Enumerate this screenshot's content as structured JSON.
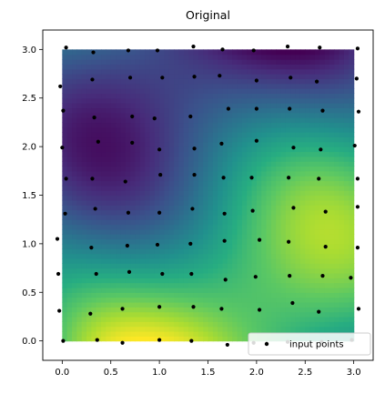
{
  "chart_data": {
    "type": "heatmap",
    "title": "Original",
    "xlabel": "",
    "ylabel": "",
    "xlim": [
      -0.2,
      3.2
    ],
    "ylim": [
      -0.2,
      3.2
    ],
    "x_ticks": [
      0.0,
      0.5,
      1.0,
      1.5,
      2.0,
      2.5,
      3.0
    ],
    "x_tick_labels": [
      "0.0",
      "0.5",
      "1.0",
      "1.5",
      "2.0",
      "2.5",
      "3.0"
    ],
    "y_ticks": [
      0.0,
      0.5,
      1.0,
      1.5,
      2.0,
      2.5,
      3.0
    ],
    "y_tick_labels": [
      "0.0",
      "0.5",
      "1.0",
      "1.5",
      "2.0",
      "2.5",
      "3.0"
    ],
    "heatmap_extent": [
      0,
      3,
      0,
      3
    ],
    "colormap": "viridis",
    "grid": false,
    "legend": {
      "placement": "lower right",
      "entries": [
        "input points"
      ]
    },
    "series": [
      {
        "name": "input points",
        "marker": "dot",
        "color": "#000000",
        "points": [
          [
            0.04,
            3.02
          ],
          [
            0.32,
            2.97
          ],
          [
            0.68,
            2.99
          ],
          [
            0.98,
            2.99
          ],
          [
            1.35,
            3.03
          ],
          [
            1.65,
            3.0
          ],
          [
            1.97,
            2.99
          ],
          [
            2.32,
            3.03
          ],
          [
            2.65,
            3.02
          ],
          [
            3.04,
            3.01
          ],
          [
            -0.02,
            2.62
          ],
          [
            0.31,
            2.69
          ],
          [
            0.7,
            2.71
          ],
          [
            1.03,
            2.71
          ],
          [
            1.36,
            2.72
          ],
          [
            1.62,
            2.73
          ],
          [
            2.0,
            2.68
          ],
          [
            2.35,
            2.71
          ],
          [
            2.62,
            2.67
          ],
          [
            3.03,
            2.7
          ],
          [
            0.01,
            2.37
          ],
          [
            0.33,
            2.3
          ],
          [
            0.72,
            2.31
          ],
          [
            0.95,
            2.29
          ],
          [
            1.32,
            2.31
          ],
          [
            1.71,
            2.39
          ],
          [
            2.0,
            2.39
          ],
          [
            2.34,
            2.39
          ],
          [
            2.68,
            2.37
          ],
          [
            3.05,
            2.36
          ],
          [
            0.0,
            1.99
          ],
          [
            0.37,
            2.05
          ],
          [
            0.72,
            2.04
          ],
          [
            1.0,
            1.97
          ],
          [
            1.36,
            1.98
          ],
          [
            1.64,
            2.03
          ],
          [
            2.0,
            2.06
          ],
          [
            2.38,
            1.99
          ],
          [
            2.66,
            1.97
          ],
          [
            3.01,
            2.01
          ],
          [
            0.04,
            1.67
          ],
          [
            0.31,
            1.67
          ],
          [
            0.65,
            1.64
          ],
          [
            1.01,
            1.71
          ],
          [
            1.36,
            1.71
          ],
          [
            1.66,
            1.68
          ],
          [
            1.95,
            1.68
          ],
          [
            2.33,
            1.68
          ],
          [
            2.64,
            1.67
          ],
          [
            3.04,
            1.67
          ],
          [
            0.03,
            1.31
          ],
          [
            0.34,
            1.36
          ],
          [
            0.68,
            1.32
          ],
          [
            1.0,
            1.32
          ],
          [
            1.34,
            1.36
          ],
          [
            1.67,
            1.31
          ],
          [
            1.96,
            1.34
          ],
          [
            2.38,
            1.37
          ],
          [
            2.71,
            1.33
          ],
          [
            3.04,
            1.38
          ],
          [
            -0.05,
            1.05
          ],
          [
            0.3,
            0.96
          ],
          [
            0.67,
            0.98
          ],
          [
            0.98,
            0.99
          ],
          [
            1.32,
            1.0
          ],
          [
            1.67,
            1.03
          ],
          [
            2.03,
            1.04
          ],
          [
            2.33,
            1.02
          ],
          [
            2.71,
            0.97
          ],
          [
            3.04,
            0.96
          ],
          [
            -0.04,
            0.69
          ],
          [
            0.35,
            0.69
          ],
          [
            0.69,
            0.71
          ],
          [
            1.03,
            0.69
          ],
          [
            1.33,
            0.69
          ],
          [
            1.68,
            0.63
          ],
          [
            1.99,
            0.66
          ],
          [
            2.34,
            0.67
          ],
          [
            2.68,
            0.67
          ],
          [
            2.97,
            0.65
          ],
          [
            -0.03,
            0.31
          ],
          [
            0.29,
            0.28
          ],
          [
            0.62,
            0.33
          ],
          [
            1.0,
            0.35
          ],
          [
            1.35,
            0.35
          ],
          [
            1.64,
            0.33
          ],
          [
            2.03,
            0.32
          ],
          [
            2.37,
            0.39
          ],
          [
            2.64,
            0.3
          ],
          [
            3.05,
            0.33
          ],
          [
            0.01,
            0.0
          ],
          [
            0.36,
            0.01
          ],
          [
            0.62,
            -0.02
          ],
          [
            1.0,
            0.01
          ],
          [
            1.33,
            -0.0
          ],
          [
            1.7,
            -0.04
          ],
          [
            1.97,
            -0.02
          ],
          [
            2.32,
            -0.01
          ],
          [
            2.67,
            -0.01
          ],
          [
            2.98,
            0.01
          ]
        ]
      }
    ]
  }
}
